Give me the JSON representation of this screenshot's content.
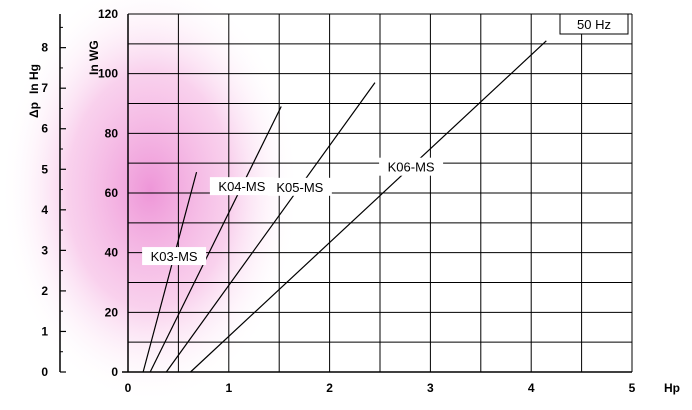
{
  "chart_data": {
    "type": "line",
    "badge": "50 Hz",
    "xlabel": "Hp",
    "ylabel": "In WG",
    "ylabel2_prefix": "Δp",
    "ylabel2": "In Hg",
    "xlim": [
      0,
      5
    ],
    "ylim": [
      0,
      120
    ],
    "y2lim": [
      0,
      8.83
    ],
    "x_ticks": [
      "0",
      "1",
      "2",
      "3",
      "4",
      "5"
    ],
    "y_ticks": [
      "0",
      "20",
      "40",
      "60",
      "80",
      "100",
      "120"
    ],
    "y2_ticks": [
      "0",
      "1",
      "2",
      "3",
      "4",
      "5",
      "6",
      "7",
      "8"
    ],
    "grid": true,
    "series": [
      {
        "name": "K03-MS",
        "x": [
          0.15,
          0.68
        ],
        "y": [
          0,
          67
        ]
      },
      {
        "name": "K04-MS",
        "x": [
          0.22,
          1.52
        ],
        "y": [
          0,
          89
        ]
      },
      {
        "name": "K05-MS",
        "x": [
          0.38,
          2.45
        ],
        "y": [
          0,
          97
        ]
      },
      {
        "name": "K06-MS",
        "x": [
          0.62,
          4.15
        ],
        "y": [
          0,
          111
        ]
      }
    ]
  }
}
